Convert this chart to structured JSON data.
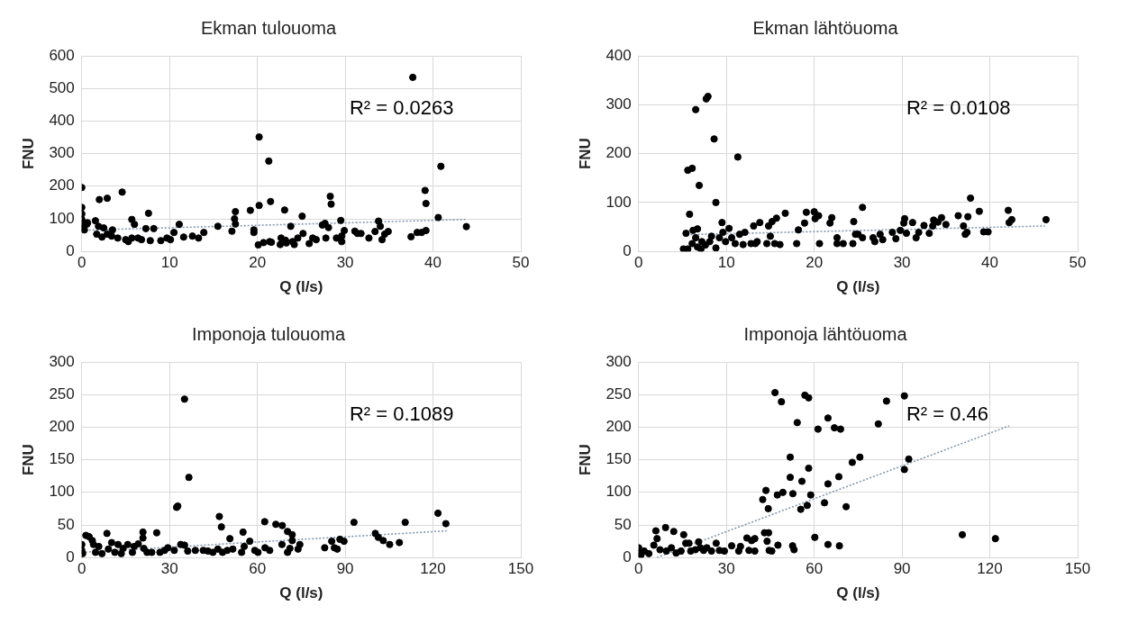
{
  "chart_data": [
    {
      "type": "scatter",
      "title": "Ekman tulouoma",
      "xlabel": "Q (l/s)",
      "ylabel": "FNU",
      "xlim": [
        0,
        50
      ],
      "xticks": [
        0,
        10,
        20,
        30,
        40,
        50
      ],
      "ylim": [
        0,
        600
      ],
      "yticks": [
        0,
        100,
        200,
        300,
        400,
        500,
        600
      ],
      "grid": true,
      "legend": false,
      "marker": "circle",
      "annotations": [
        "R² = 0.0263"
      ],
      "series": [
        {
          "type": "scatter",
          "color": "#000000",
          "x": [
            0,
            0,
            0,
            0,
            0,
            0,
            0.1,
            0.3,
            0.6,
            0.65,
            1.55,
            1.7,
            2,
            2.9,
            1.9,
            2.5,
            2.3,
            2.9,
            3.5,
            3.4,
            4.6,
            4.1,
            5,
            5.3,
            5.7,
            6,
            5.7,
            6.4,
            6.8,
            7.6,
            7.3,
            7.8,
            8.2,
            9,
            9.7,
            10.1,
            10.5,
            11.1,
            11.6,
            12.6,
            13.3,
            13.9,
            15.5,
            17.1,
            17.4,
            17.5,
            17.5,
            19.2,
            19.6,
            19.6,
            20.2,
            20.2,
            20.1,
            20.7,
            21.3,
            21.4,
            21.5,
            21.6,
            22.6,
            22.7,
            23.1,
            23.2,
            23.3,
            23.8,
            24,
            24.2,
            24.6,
            25.1,
            25.2,
            25.9,
            26.3,
            26.7,
            27.4,
            27.7,
            27.8,
            28.1,
            28.3,
            28.4,
            29,
            29.5,
            29.6,
            29.6,
            29.9,
            31.1,
            31.4,
            31.8,
            32.7,
            33.4,
            33.8,
            34,
            34.2,
            34.5,
            34.9,
            37.5,
            37.7,
            38.2,
            38.7,
            39.1,
            39.2,
            39.2,
            40.6,
            40.9,
            43.8
          ],
          "values": [
            196,
            135,
            115,
            98,
            86,
            75,
            70,
            66,
            84,
            88,
            94,
            53,
            159,
            163,
            77,
            72,
            44,
            53,
            66,
            47,
            182,
            41,
            36,
            30,
            98,
            83,
            41,
            41,
            36,
            117,
            70,
            33,
            70,
            33,
            41,
            36,
            58,
            83,
            44,
            47,
            41,
            58,
            77,
            62,
            100,
            122,
            84,
            126,
            66,
            58,
            141,
            351,
            20,
            27,
            277,
            30,
            153,
            28,
            21,
            41,
            127,
            34,
            26,
            77,
            30,
            21,
            41,
            108,
            55,
            24,
            41,
            36,
            81,
            86,
            41,
            73,
            169,
            145,
            41,
            95,
            47,
            30,
            64,
            62,
            55,
            55,
            41,
            61,
            93,
            77,
            36,
            53,
            61,
            45,
            534,
            58,
            58,
            187,
            147,
            64,
            104,
            261,
            76
          ]
        },
        {
          "type": "line",
          "marker": "none",
          "color": "#8497b0",
          "line_style": "dotted",
          "x": [
            0,
            43.8
          ],
          "values": [
            65,
            98
          ]
        }
      ]
    },
    {
      "type": "scatter",
      "title": "Ekman lähtöuoma",
      "xlabel": "Q (l/s)",
      "ylabel": "FNU",
      "xlim": [
        0,
        50
      ],
      "xticks": [
        0,
        10,
        20,
        30,
        40,
        50
      ],
      "ylim": [
        0,
        400
      ],
      "yticks": [
        0,
        100,
        200,
        300,
        400
      ],
      "grid": true,
      "legend": false,
      "marker": "circle",
      "annotations": [
        "R² = 0.0108"
      ],
      "series": [
        {
          "type": "scatter",
          "color": "#000000",
          "x": [
            5.1,
            5.4,
            5.6,
            6.1,
            6.5,
            5.8,
            6.2,
            6.7,
            6.9,
            5.6,
            6.1,
            6.5,
            6.7,
            7.1,
            7.2,
            7.7,
            7.9,
            7.6,
            8.1,
            8.3,
            8.6,
            8.8,
            8.8,
            9.2,
            9.5,
            9.6,
            9.9,
            10.3,
            10.6,
            11,
            11.3,
            11.5,
            11.9,
            12.1,
            12.8,
            13.1,
            13.3,
            13.5,
            13.8,
            14.6,
            14.8,
            15,
            15.2,
            15.5,
            15.7,
            16.1,
            16.7,
            18,
            18.2,
            18.9,
            19.1,
            20,
            20.1,
            20.5,
            20.6,
            21.8,
            22,
            22.6,
            22.6,
            23.3,
            24.4,
            24.5,
            24.7,
            25,
            25.5,
            25.5,
            26.7,
            26.9,
            27.5,
            27.8,
            28.9,
            29.3,
            29.8,
            30.2,
            30.3,
            30.5,
            31.2,
            31.6,
            31.9,
            32.5,
            33.1,
            33.5,
            33.6,
            34.1,
            34.5,
            35,
            36.4,
            37,
            37.2,
            37.4,
            37.5,
            37.8,
            38.8,
            39.3,
            39.8,
            42.1,
            42.2,
            42.5,
            46.4
          ],
          "values": [
            5,
            37,
            166,
            170,
            290,
            76,
            43,
            46,
            135,
            5,
            16,
            28,
            9,
            5,
            20,
            312,
            317,
            13,
            20,
            31,
            230,
            100,
            7,
            28,
            59,
            39,
            20,
            47,
            28,
            16,
            193,
            35,
            14,
            39,
            16,
            52,
            16,
            20,
            59,
            16,
            52,
            31,
            61,
            16,
            68,
            14,
            78,
            16,
            44,
            58,
            80,
            81,
            67,
            73,
            16,
            58,
            69,
            28,
            16,
            16,
            16,
            61,
            35,
            35,
            90,
            28,
            28,
            20,
            35,
            24,
            39,
            26,
            43,
            58,
            67,
            37,
            59,
            28,
            39,
            53,
            37,
            52,
            64,
            60,
            69,
            55,
            73,
            52,
            35,
            39,
            71,
            109,
            82,
            40,
            40,
            84,
            59,
            65,
            65
          ]
        },
        {
          "type": "line",
          "marker": "none",
          "color": "#8497b0",
          "line_style": "dotted",
          "x": [
            5.1,
            46.3
          ],
          "values": [
            34,
            52
          ]
        }
      ]
    },
    {
      "type": "scatter",
      "title": "Imponoja tulouoma",
      "xlabel": "Q (l/s)",
      "ylabel": "FNU",
      "xlim": [
        0,
        150
      ],
      "xticks": [
        0,
        30,
        60,
        90,
        120,
        150
      ],
      "ylim": [
        0,
        300
      ],
      "yticks": [
        0,
        50,
        100,
        150,
        200,
        250,
        300
      ],
      "grid": true,
      "legend": false,
      "marker": "circle",
      "annotations": [
        "R² = 0.1089"
      ],
      "series": [
        {
          "type": "scatter",
          "color": "#000000",
          "x": [
            0,
            0,
            0.3,
            1.4,
            2.5,
            3.6,
            4,
            4.7,
            5.8,
            6.9,
            8.6,
            9.1,
            10.2,
            11.3,
            12.4,
            13.5,
            14.1,
            15.7,
            17.3,
            17.9,
            19.3,
            20.9,
            20.9,
            21.2,
            22.3,
            23.9,
            25.6,
            26.7,
            28.3,
            29.4,
            31.6,
            32.4,
            32.8,
            33.8,
            35.1,
            35.1,
            36.2,
            36.6,
            38.8,
            41.5,
            43.1,
            44.8,
            46.5,
            47,
            47.7,
            48.1,
            49.7,
            50.6,
            51.6,
            54.6,
            55.1,
            55.5,
            57.4,
            59.1,
            60.2,
            62.5,
            62.6,
            64.2,
            66.3,
            68.5,
            68.4,
            70.3,
            70.3,
            71.1,
            71.9,
            71.9,
            73.9,
            74.5,
            83,
            85.4,
            86.3,
            87.3,
            88.2,
            89.6,
            93,
            100.3,
            101.3,
            103,
            105.2,
            108.5,
            110.5,
            121.7,
            124.4
          ],
          "values": [
            20,
            11,
            6,
            34,
            32,
            26,
            20,
            8,
            17,
            6,
            37,
            13,
            23,
            8,
            20,
            6,
            14,
            20,
            8,
            17,
            21,
            39,
            30,
            14,
            8,
            8,
            38,
            8,
            11,
            15,
            11,
            77,
            79,
            20,
            243,
            19,
            10,
            123,
            11,
            11,
            10,
            8,
            13,
            63,
            47,
            8,
            11,
            29,
            13,
            8,
            39,
            17,
            25,
            11,
            8,
            55,
            15,
            11,
            51,
            49,
            20,
            8,
            40,
            14,
            35,
            26,
            13,
            20,
            15,
            25,
            15,
            13,
            28,
            25,
            54,
            37,
            31,
            26,
            20,
            23,
            54,
            68,
            52
          ]
        },
        {
          "type": "line",
          "marker": "none",
          "color": "#8497b0",
          "line_style": "dotted",
          "x": [
            0,
            124.7
          ],
          "values": [
            8,
            41
          ]
        }
      ]
    },
    {
      "type": "scatter",
      "title": "Imponoja lähtöuoma",
      "xlabel": "Q (l/s)",
      "ylabel": "FNU",
      "xlim": [
        0,
        150
      ],
      "xticks": [
        0,
        30,
        60,
        90,
        120,
        150
      ],
      "ylim": [
        0,
        300
      ],
      "yticks": [
        0,
        50,
        100,
        150,
        200,
        250,
        300
      ],
      "grid": true,
      "legend": false,
      "marker": "circle",
      "annotations": [
        "R² = 0.46"
      ],
      "series": [
        {
          "type": "scatter",
          "color": "#000000",
          "x": [
            0,
            0,
            0.8,
            1.9,
            3.5,
            5.2,
            5.9,
            6.3,
            7.3,
            9.2,
            9.5,
            11.2,
            12,
            12.8,
            14.5,
            15.4,
            16.1,
            17.2,
            17.8,
            19.4,
            20.5,
            21.1,
            22.2,
            23.3,
            24.9,
            26.5,
            27.6,
            29.3,
            31.8,
            34.2,
            34.8,
            37,
            37.7,
            38.6,
            39.7,
            39.7,
            42.4,
            43,
            43.5,
            43.9,
            44.3,
            44.4,
            44.6,
            45.5,
            46.6,
            47.4,
            47.6,
            48.8,
            49.3,
            51.8,
            51.8,
            52.6,
            52.7,
            53.1,
            54.2,
            55.4,
            55.8,
            56.8,
            57.6,
            58.1,
            58.1,
            58.8,
            60.2,
            61.3,
            63.5,
            64.7,
            64.7,
            64.7,
            66.9,
            68.4,
            69,
            68.6,
            70.9,
            73,
            75.6,
            81.9,
            84.7,
            90.8,
            90.8,
            92.3,
            110.6,
            121.9
          ],
          "values": [
            15,
            7,
            4,
            10,
            6,
            19,
            41,
            29,
            12,
            46,
            10,
            15,
            40,
            7,
            10,
            35,
            22,
            22,
            10,
            12,
            24,
            15,
            11,
            15,
            10,
            22,
            11,
            10,
            18,
            10,
            17,
            30,
            11,
            26,
            29,
            10,
            89,
            38,
            103,
            25,
            75,
            38,
            11,
            10,
            253,
            96,
            19,
            239,
            100,
            154,
            123,
            18,
            98,
            12,
            207,
            74,
            117,
            249,
            80,
            245,
            137,
            96,
            31,
            197,
            84,
            113,
            214,
            20,
            199,
            124,
            197,
            18,
            78,
            146,
            154,
            205,
            240,
            248,
            135,
            151,
            35,
            29
          ]
        },
        {
          "type": "line",
          "marker": "none",
          "color": "#8497b0",
          "line_style": "dotted",
          "x": [
            6.3,
            126.6
          ],
          "values": [
            0,
            202
          ]
        }
      ]
    }
  ]
}
